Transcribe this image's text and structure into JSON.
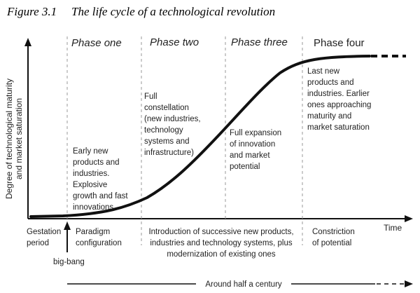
{
  "figure": {
    "label": "Figure 3.1",
    "title": "The life cycle of a technological revolution"
  },
  "axes": {
    "y_label_line1": "Degree of technological maturity",
    "y_label_line2": "and market saturation",
    "x_label": "Time"
  },
  "phases": [
    {
      "name": "Phase one"
    },
    {
      "name": "Phase two"
    },
    {
      "name": "Phase three"
    },
    {
      "name": "Phase four"
    }
  ],
  "phase_notes": {
    "one": [
      "Early new",
      "products and",
      "industries.",
      "Explosive",
      "growth and fast",
      "innovations"
    ],
    "two": [
      "Full",
      "constellation",
      "(new industries,",
      "technology",
      "systems and",
      "infrastructure)"
    ],
    "three": [
      "Full expansion",
      "of innovation",
      "and market",
      "potential"
    ],
    "four": [
      "Last new",
      "products and",
      "industries. Earlier",
      "ones approaching",
      "maturity and",
      "market saturation"
    ]
  },
  "bottom_labels": {
    "gestation": [
      "Gestation",
      "period"
    ],
    "paradigm": [
      "Paradigm",
      "configuration"
    ],
    "introduction": [
      "Introduction of successive new products,",
      "industries and technology systems, plus",
      "modernization of existing ones"
    ],
    "constriction": [
      "Constriction",
      "of potential"
    ],
    "big_bang": "big-bang",
    "half_century": "Around half a century"
  },
  "icons": {
    "y_arrow": "arrow-up-icon",
    "x_arrow": "arrow-right-icon",
    "big_bang_arrow": "arrow-up-icon",
    "timeline_arrow": "arrow-right-icon"
  }
}
